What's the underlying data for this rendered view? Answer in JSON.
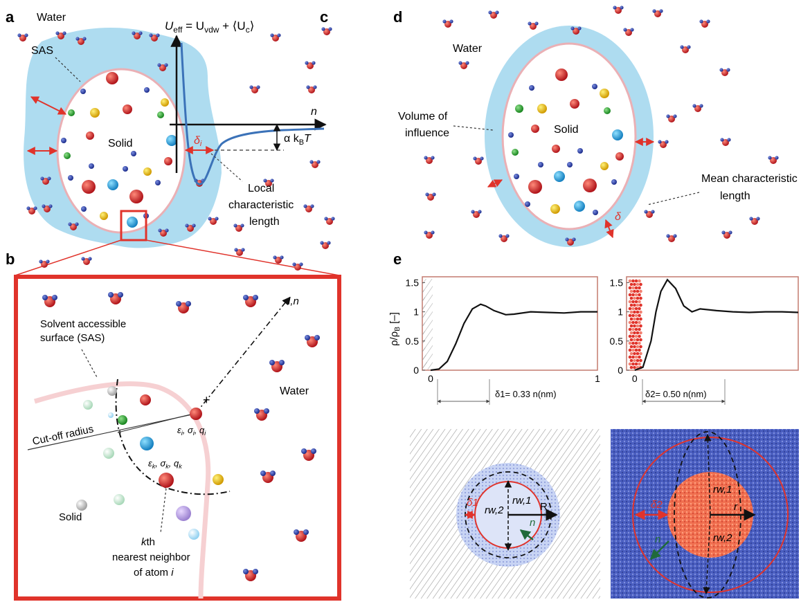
{
  "panels": {
    "a": "a",
    "b": "b",
    "c": "c",
    "d": "d",
    "e": "e"
  },
  "colors": {
    "sas_fill": "#aedcf0",
    "solid_outline": "#f0a4a8",
    "red": "#e0332b",
    "curve": "#3b72b8",
    "shell_blue": "#3e50b0",
    "core_red": "#ee6a4a"
  },
  "panel_a": {
    "water": "Water",
    "sas": "SAS",
    "solid": "Solid"
  },
  "panel_c": {
    "equation_parts": [
      "U",
      "eff",
      " = U",
      "vdw",
      " + ⟨U",
      "c",
      "⟩"
    ],
    "axis_n": "n",
    "kbt": [
      "α k",
      "B",
      "T"
    ],
    "delta": [
      "δ",
      "i"
    ],
    "local": [
      "Local",
      "characteristic",
      "length"
    ]
  },
  "panel_b": {
    "sas_label": [
      "Solvent accessible",
      "surface (SAS)"
    ],
    "water": "Water",
    "cutoff": "Cut-off radius",
    "ln": "l,n",
    "atom_i": [
      "ε",
      "i",
      ", σ",
      "i",
      ", q",
      "i"
    ],
    "atom_k": [
      "ε",
      "k",
      ", σ",
      "k",
      ", q",
      "k"
    ],
    "solid": "Solid",
    "kth": [
      "k",
      "th",
      "nearest neighbor",
      "of atom ",
      "i"
    ]
  },
  "panel_d": {
    "water": "Water",
    "volume": [
      "Volume of",
      "influence"
    ],
    "solid": "Solid",
    "mean": [
      "Mean characteristic",
      "length"
    ],
    "delta": "δ"
  },
  "panel_e": {
    "ylabel": "ρ/ρB [–]",
    "plot1": {
      "yticks": [
        "1.5",
        "1",
        "0.5",
        "0"
      ],
      "xticks": [
        "0",
        "1"
      ],
      "delta_label": "δ1= 0.33 n(nm)"
    },
    "plot2": {
      "yticks": [
        "1.5",
        "1",
        "0.5",
        "0"
      ],
      "xticks": [
        "0"
      ],
      "delta_label": "δ2= 0.50 n(nm)"
    },
    "snap1": {
      "delta": "δ1",
      "rw1": "rw,1",
      "rw2": "rw,2",
      "R": "R",
      "n": "n"
    },
    "snap2": {
      "delta": "δ2",
      "rw1": "rw,1",
      "rw2": "rw,2",
      "r": "r",
      "n": "n"
    }
  },
  "chart_data": [
    {
      "type": "line",
      "title": "",
      "xlabel": "n(nm)",
      "ylabel": "ρ/ρB [–]",
      "xlim": [
        -0.05,
        1.0
      ],
      "ylim": [
        0,
        1.6
      ],
      "x_ticks": [
        0,
        1
      ],
      "y_ticks": [
        0,
        0.5,
        1,
        1.5
      ],
      "series": [
        {
          "x": [
            0.0,
            0.05,
            0.1,
            0.15,
            0.2,
            0.25,
            0.3,
            0.33,
            0.38,
            0.45,
            0.5,
            0.6,
            0.7,
            0.8,
            0.9,
            1.0
          ],
          "y": [
            0.0,
            0.02,
            0.15,
            0.45,
            0.8,
            1.05,
            1.13,
            1.1,
            1.02,
            0.95,
            0.96,
            1.0,
            0.99,
            0.98,
            1.0,
            1.0
          ]
        }
      ],
      "annotations": [
        "δ1= 0.33 n(nm)"
      ]
    },
    {
      "type": "line",
      "title": "",
      "xlabel": "n(nm)",
      "ylabel": "",
      "xlim": [
        -0.05,
        1.0
      ],
      "ylim": [
        0,
        1.6
      ],
      "x_ticks": [
        0
      ],
      "y_ticks": [
        0,
        0.5,
        1,
        1.5
      ],
      "series": [
        {
          "x": [
            0.0,
            0.05,
            0.1,
            0.13,
            0.16,
            0.2,
            0.25,
            0.3,
            0.35,
            0.4,
            0.5,
            0.6,
            0.7,
            0.8,
            0.9,
            1.0
          ],
          "y": [
            0.0,
            0.05,
            0.5,
            1.0,
            1.35,
            1.55,
            1.4,
            1.1,
            1.0,
            1.05,
            1.02,
            1.0,
            0.99,
            1.0,
            1.0,
            0.99
          ]
        }
      ],
      "annotations": [
        "δ2= 0.50 n(nm)"
      ]
    }
  ]
}
